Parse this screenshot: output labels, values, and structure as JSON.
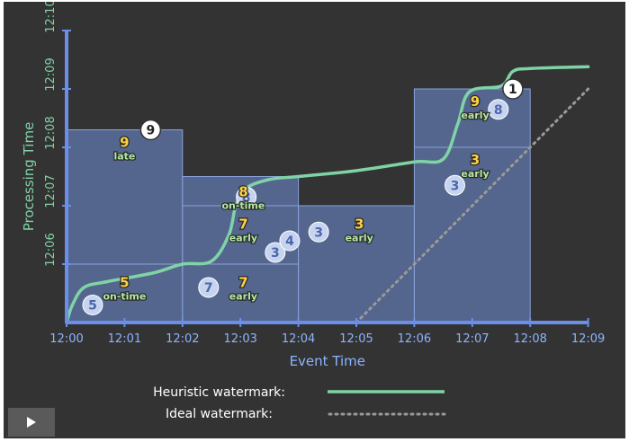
{
  "colors": {
    "background": "#333333",
    "axis": "#6b8ee8",
    "axis_text": "#8cb4ff",
    "heuristic": "#7fd3a6",
    "ideal": "#9a9a9a",
    "pane_fill": "#5d74a8",
    "pane_border": "#8aa2dc",
    "count": "#ffd23f",
    "timing": "#b3e9a4",
    "datum_fill": "#c7d4f0",
    "datum_text": "#4d66aa"
  },
  "chart_data": {
    "type": "diagram",
    "xlabel": "Event Time",
    "ylabel": "Processing Time",
    "x_ticks": [
      "12:00",
      "12:01",
      "12:02",
      "12:03",
      "12:04",
      "12:05",
      "12:06",
      "12:07",
      "12:08",
      "12:09"
    ],
    "y_ticks": [
      "12:06",
      "12:07",
      "12:08",
      "12:09",
      "12:10"
    ],
    "x_range_minutes": [
      0,
      9
    ],
    "y_range_minutes": [
      5,
      10
    ],
    "windows": [
      {
        "start": 0,
        "end": 2,
        "panes": [
          {
            "top": 6.0,
            "count": "5",
            "timing": "on-time",
            "x": 1.0,
            "y": 5.55
          },
          {
            "top": 8.3,
            "count": "9",
            "timing": "late",
            "x": 1.0,
            "y": 7.95
          }
        ]
      },
      {
        "start": 2,
        "end": 4,
        "panes": [
          {
            "top": 6.0,
            "count": "7",
            "timing": "early",
            "x": 3.05,
            "y": 5.55
          },
          {
            "top": 7.0,
            "count": "7",
            "timing": "early",
            "x": 3.05,
            "y": 6.55
          },
          {
            "top": 7.5,
            "count": "8",
            "timing": "on-time",
            "x": 3.05,
            "y": 7.1
          }
        ]
      },
      {
        "start": 4,
        "end": 6,
        "panes": [
          {
            "top": 7.0,
            "count": "3",
            "timing": "early",
            "x": 5.05,
            "y": 6.55
          }
        ]
      },
      {
        "start": 6,
        "end": 8,
        "panes": [
          {
            "top": 8.0,
            "count": "3",
            "timing": "early",
            "x": 7.05,
            "y": 7.65
          },
          {
            "top": 9.0,
            "count": "9",
            "timing": "early",
            "x": 7.05,
            "y": 8.65
          }
        ]
      }
    ],
    "data_points": [
      {
        "label": "5",
        "x": 0.45,
        "y": 5.3,
        "style": "light"
      },
      {
        "label": "9",
        "x": 1.45,
        "y": 8.3,
        "style": "white"
      },
      {
        "label": "7",
        "x": 2.45,
        "y": 5.6,
        "style": "light"
      },
      {
        "label": "8",
        "x": 3.1,
        "y": 7.15,
        "style": "light"
      },
      {
        "label": "3",
        "x": 3.6,
        "y": 6.2,
        "style": "light"
      },
      {
        "label": "4",
        "x": 3.85,
        "y": 6.4,
        "style": "light"
      },
      {
        "label": "3",
        "x": 4.35,
        "y": 6.55,
        "style": "light"
      },
      {
        "label": "3",
        "x": 6.7,
        "y": 7.35,
        "style": "light"
      },
      {
        "label": "8",
        "x": 7.45,
        "y": 8.65,
        "style": "light"
      },
      {
        "label": "1",
        "x": 7.7,
        "y": 9.0,
        "style": "white"
      }
    ],
    "heuristic_watermark": [
      [
        0,
        5.0
      ],
      [
        0.1,
        5.3
      ],
      [
        0.3,
        5.6
      ],
      [
        0.7,
        5.7
      ],
      [
        1.5,
        5.85
      ],
      [
        2.0,
        6.0
      ],
      [
        2.5,
        6.05
      ],
      [
        2.8,
        6.5
      ],
      [
        2.92,
        7.0
      ],
      [
        3.1,
        7.3
      ],
      [
        3.5,
        7.45
      ],
      [
        4.0,
        7.5
      ],
      [
        5.0,
        7.6
      ],
      [
        6.0,
        7.75
      ],
      [
        6.5,
        7.8
      ],
      [
        6.75,
        8.4
      ],
      [
        6.95,
        8.95
      ],
      [
        7.5,
        9.05
      ],
      [
        7.7,
        9.3
      ],
      [
        8.0,
        9.35
      ],
      [
        9.0,
        9.38
      ]
    ],
    "ideal_watermark": [
      [
        5.0,
        5.0
      ],
      [
        9.0,
        9.0
      ]
    ]
  },
  "legend": {
    "heuristic_label": "Heuristic watermark:",
    "ideal_label": "Ideal watermark:"
  },
  "controls": {
    "play_icon": "play-icon"
  }
}
